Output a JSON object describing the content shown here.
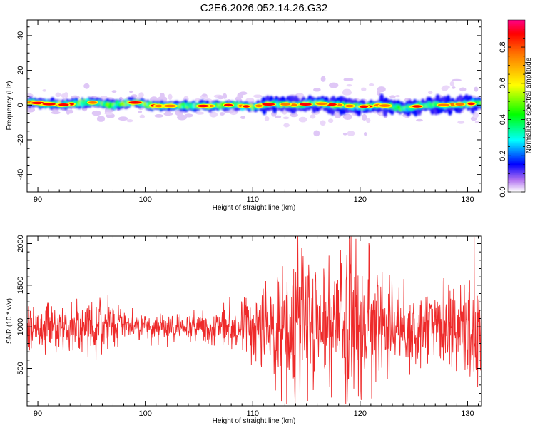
{
  "title": "C2E6.2026.052.14.26.G32",
  "colors": {
    "snr_line": "#ee2a2a",
    "axis": "#000000",
    "background": "#ffffff"
  },
  "chart_data": [
    {
      "type": "heatmap",
      "title": "C2E6.2026.052.14.26.G32",
      "xlabel": "Height of straight line (km)",
      "ylabel": "Frequency (Hz)",
      "xlim": [
        89,
        131.3
      ],
      "ylim": [
        -50,
        49
      ],
      "xticks": [
        90,
        100,
        110,
        120,
        130
      ],
      "yticks": [
        40,
        20,
        0,
        -20,
        -40
      ],
      "colorbar": {
        "label": "Normalized spectral amplitude",
        "range": [
          0,
          0.95
        ],
        "ticks": [
          "0.0",
          "0.2",
          "0.4",
          "0.6",
          "0.8"
        ],
        "tick_values": [
          0,
          0.2,
          0.4,
          0.6,
          0.8
        ],
        "colormap": "rainbow"
      },
      "ridge": {
        "description": "spectral energy concentrated near 0 Hz across the full height range",
        "center_points": [
          {
            "x": 89.5,
            "y": 1.5
          },
          {
            "x": 92,
            "y": 0
          },
          {
            "x": 95,
            "y": 1.5
          },
          {
            "x": 97,
            "y": 0
          },
          {
            "x": 99,
            "y": 1.5
          },
          {
            "x": 101,
            "y": -0.5
          },
          {
            "x": 104,
            "y": -0.5
          },
          {
            "x": 106,
            "y": -0.5
          },
          {
            "x": 108,
            "y": 0
          },
          {
            "x": 110,
            "y": -1
          },
          {
            "x": 112,
            "y": 1
          },
          {
            "x": 114,
            "y": 0
          },
          {
            "x": 116,
            "y": 1
          },
          {
            "x": 118,
            "y": 0
          },
          {
            "x": 120,
            "y": -1
          },
          {
            "x": 122,
            "y": 0
          },
          {
            "x": 124,
            "y": -2
          },
          {
            "x": 126,
            "y": 0
          },
          {
            "x": 128,
            "y": 0
          },
          {
            "x": 131,
            "y": 1
          }
        ],
        "peak_amplitude": 0.95
      }
    },
    {
      "type": "line",
      "xlabel": "Height of straight line (km)",
      "ylabel": "SNR (10 * v/v)",
      "xlim": [
        89,
        131.3
      ],
      "ylim": [
        50,
        2090
      ],
      "xticks": [
        90,
        100,
        110,
        120,
        130
      ],
      "yticks": [
        500,
        1000,
        1500,
        2000
      ],
      "series": [
        {
          "mean": 1000,
          "amplitude_profile": [
            {
              "x": 89,
              "amp": 200
            },
            {
              "x": 96,
              "amp": 220
            },
            {
              "x": 100,
              "amp": 100
            },
            {
              "x": 106,
              "amp": 130
            },
            {
              "x": 111,
              "amp": 300
            },
            {
              "x": 114,
              "amp": 650
            },
            {
              "x": 116,
              "amp": 450
            },
            {
              "x": 119,
              "amp": 650
            },
            {
              "x": 123,
              "amp": 380
            },
            {
              "x": 127,
              "amp": 300
            },
            {
              "x": 131.3,
              "amp": 500
            }
          ],
          "peaks": [
            {
              "x": 114.2,
              "y": 2090
            },
            {
              "x": 114.4,
              "y": 150
            },
            {
              "x": 115.1,
              "y": 110
            },
            {
              "x": 119.0,
              "y": 2060
            },
            {
              "x": 120.1,
              "y": 120
            },
            {
              "x": 130.6,
              "y": 2080
            }
          ],
          "sample_count": 1300
        }
      ]
    }
  ]
}
